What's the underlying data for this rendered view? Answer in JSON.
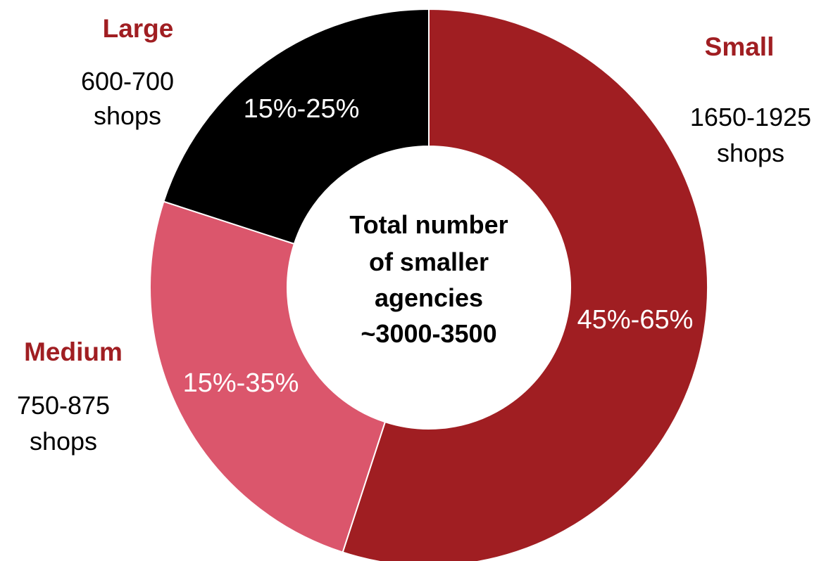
{
  "chart_data": {
    "type": "pie",
    "subtype": "donut",
    "center_text": [
      "Total number",
      "of smaller",
      "agencies",
      "~3000-3500"
    ],
    "slices": [
      {
        "name": "Small",
        "percent_label": "45%-65%",
        "count_lines": [
          "1650-1925",
          "shops"
        ],
        "value": 0.55,
        "color": "#a01e22",
        "label_color": "#a01e22"
      },
      {
        "name": "Medium",
        "percent_label": "15%-35%",
        "count_lines": [
          "750-875",
          "shops"
        ],
        "value": 0.25,
        "color": "#db566c",
        "label_color": "#a01e22"
      },
      {
        "name": "Large",
        "percent_label": "15%-25%",
        "count_lines": [
          "600-700",
          "shops"
        ],
        "value": 0.2,
        "color": "#000000",
        "label_color": "#a01e22"
      }
    ]
  }
}
